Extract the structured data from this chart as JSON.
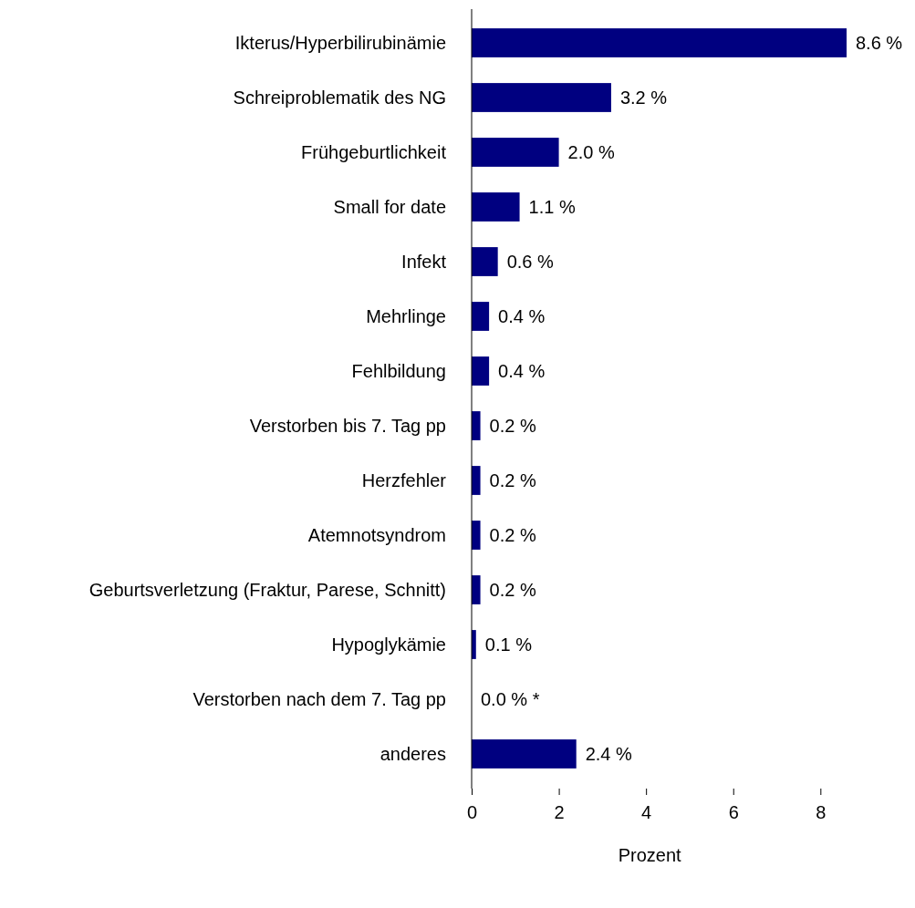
{
  "chart_data": {
    "type": "bar",
    "orientation": "horizontal",
    "xlabel": "Prozent",
    "categories": [
      "Ikterus/Hyperbilirubinämie",
      "Schreiproblematik des NG",
      "Frühgeburtlichkeit",
      "Small for date",
      "Infekt",
      "Mehrlinge",
      "Fehlbildung",
      "Verstorben bis 7. Tag pp",
      "Herzfehler",
      "Atemnotsyndrom",
      "Geburtsverletzung (Fraktur, Parese, Schnitt)",
      "Hypoglykämie",
      "Verstorben nach dem 7. Tag pp",
      "anderes"
    ],
    "values": [
      8.6,
      3.2,
      2.0,
      1.1,
      0.6,
      0.4,
      0.4,
      0.2,
      0.2,
      0.2,
      0.2,
      0.1,
      0.0,
      2.4
    ],
    "value_labels": [
      "8.6 %",
      "3.2 %",
      "2.0 %",
      "1.1 %",
      "0.6 %",
      "0.4 %",
      "0.4 %",
      "0.2 %",
      "0.2 %",
      "0.2 %",
      "0.2 %",
      "0.1 %",
      "0.0 % *",
      "2.4 %"
    ],
    "color": "#000080",
    "xlim": [
      0,
      8.6
    ],
    "xticks": [
      0,
      2,
      4,
      6,
      8
    ],
    "grid": false
  }
}
